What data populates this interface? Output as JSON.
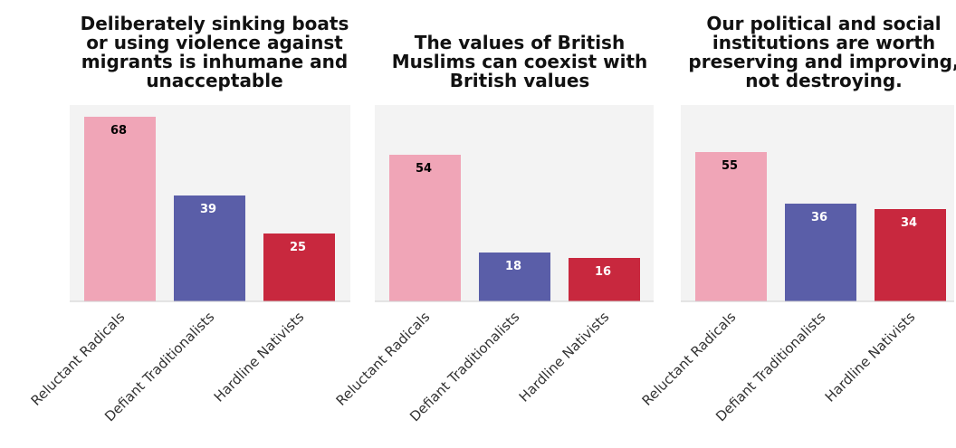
{
  "chart_data": [
    {
      "type": "bar",
      "title": "Deliberately sinking boats or using violence against migrants is inhumane and unacceptable",
      "title_lines": [
        "Deliberately sinking boats",
        "or using violence against",
        "migrants is inhumane and",
        "unacceptable"
      ],
      "categories": [
        "Reluctant Radicals",
        "Defiant Traditionalists",
        "Hardline Nativists"
      ],
      "values": [
        68,
        39,
        25
      ],
      "colors": [
        "#f0a5b7",
        "#5a5ea8",
        "#c8283e"
      ],
      "label_colors": [
        "#000000",
        "#ffffff",
        "#ffffff"
      ],
      "ylim": [
        0,
        70
      ],
      "grid": false,
      "legend": "none"
    },
    {
      "type": "bar",
      "title": "The values of British Muslims can coexist with British values",
      "title_lines": [
        "The values of British",
        "Muslims can coexist with",
        "British values"
      ],
      "categories": [
        "Reluctant Radicals",
        "Defiant Traditionalists",
        "Hardline Nativists"
      ],
      "values": [
        54,
        18,
        16
      ],
      "colors": [
        "#f0a5b7",
        "#5a5ea8",
        "#c8283e"
      ],
      "label_colors": [
        "#000000",
        "#ffffff",
        "#ffffff"
      ],
      "ylim": [
        0,
        70
      ],
      "grid": false,
      "legend": "none"
    },
    {
      "type": "bar",
      "title": "Our political and social institutions are worth preserving and improving, not destroying.",
      "title_lines": [
        "Our political and social",
        "institutions are worth",
        "preserving and improving,",
        "not destroying."
      ],
      "categories": [
        "Reluctant Radicals",
        "Defiant Traditionalists",
        "Hardline Nativists"
      ],
      "values": [
        55,
        36,
        34
      ],
      "colors": [
        "#f0a5b7",
        "#5a5ea8",
        "#c8283e"
      ],
      "label_colors": [
        "#000000",
        "#ffffff",
        "#ffffff"
      ],
      "ylim": [
        0,
        70
      ],
      "grid": false,
      "legend": "none"
    }
  ],
  "colors": {
    "panel_bg": "#f3f3f3",
    "axis_line": "#cfcfcf",
    "title_text": "#111111",
    "tick_text": "#333333"
  }
}
